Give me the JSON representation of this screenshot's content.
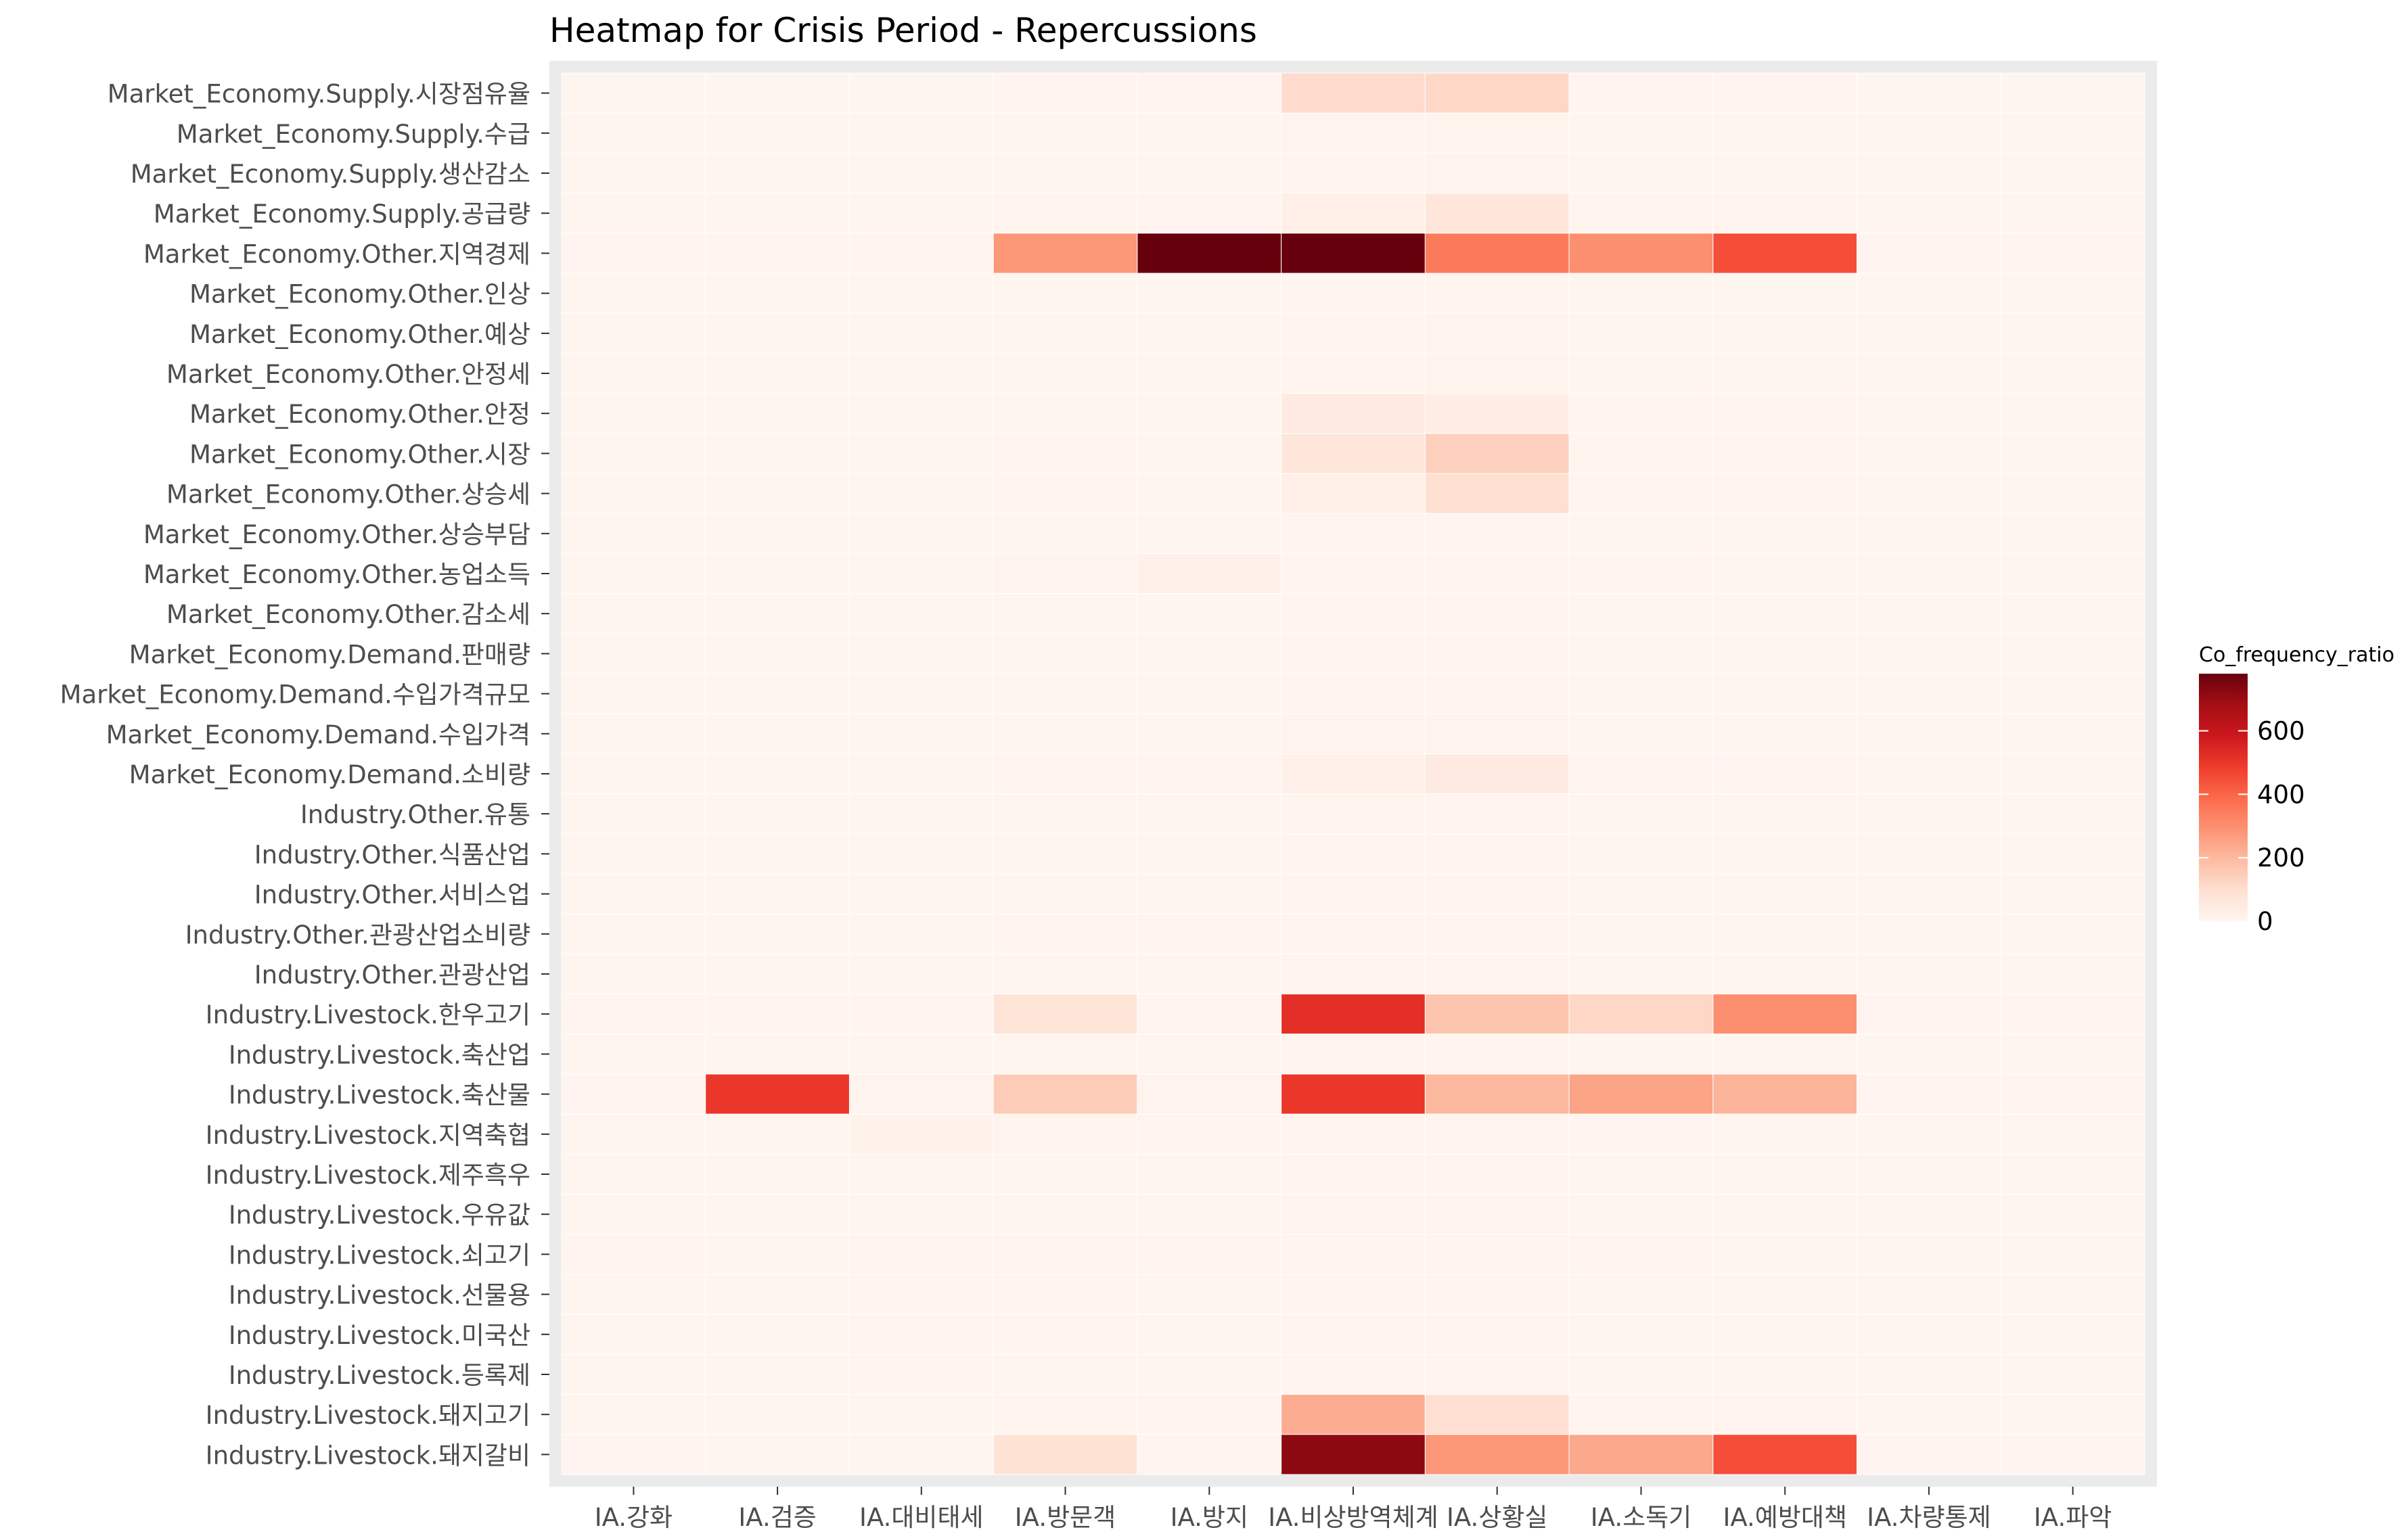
{
  "chart_data": {
    "type": "heatmap",
    "title": "Heatmap for Crisis Period - Repercussions",
    "xlabel": "",
    "ylabel": "",
    "x_categories": [
      "IA.강화",
      "IA.검증",
      "IA.대비태세",
      "IA.방문객",
      "IA.방지",
      "IA.비상방역체계",
      "IA.상황실",
      "IA.소독기",
      "IA.예방대책",
      "IA.차량통제",
      "IA.파악"
    ],
    "y_categories": [
      "Market_Economy.Supply.시장점유율",
      "Market_Economy.Supply.수급",
      "Market_Economy.Supply.생산감소",
      "Market_Economy.Supply.공급량",
      "Market_Economy.Other.지역경제",
      "Market_Economy.Other.인상",
      "Market_Economy.Other.예상",
      "Market_Economy.Other.안정세",
      "Market_Economy.Other.안정",
      "Market_Economy.Other.시장",
      "Market_Economy.Other.상승세",
      "Market_Economy.Other.상승부담",
      "Market_Economy.Other.농업소득",
      "Market_Economy.Other.감소세",
      "Market_Economy.Demand.판매량",
      "Market_Economy.Demand.수입가격규모",
      "Market_Economy.Demand.수입가격",
      "Market_Economy.Demand.소비량",
      "Industry.Other.유통",
      "Industry.Other.식품산업",
      "Industry.Other.서비스업",
      "Industry.Other.관광산업소비량",
      "Industry.Other.관광산업",
      "Industry.Livestock.한우고기",
      "Industry.Livestock.축산업",
      "Industry.Livestock.축산물",
      "Industry.Livestock.지역축협",
      "Industry.Livestock.제주흑우",
      "Industry.Livestock.우유값",
      "Industry.Livestock.쇠고기",
      "Industry.Livestock.선물용",
      "Industry.Livestock.미국산",
      "Industry.Livestock.등록제",
      "Industry.Livestock.돼지고기",
      "Industry.Livestock.돼지갈비"
    ],
    "values": [
      [
        2,
        2,
        2,
        5,
        3,
        110,
        120,
        3,
        3,
        2,
        2
      ],
      [
        2,
        2,
        2,
        2,
        2,
        8,
        10,
        2,
        2,
        2,
        2
      ],
      [
        2,
        2,
        2,
        2,
        2,
        5,
        8,
        2,
        2,
        2,
        2
      ],
      [
        2,
        2,
        2,
        5,
        3,
        30,
        70,
        5,
        5,
        2,
        2
      ],
      [
        3,
        3,
        3,
        280,
        780,
        780,
        350,
        300,
        450,
        3,
        3
      ],
      [
        2,
        2,
        2,
        2,
        2,
        5,
        5,
        2,
        2,
        2,
        2
      ],
      [
        2,
        2,
        2,
        2,
        2,
        5,
        8,
        2,
        2,
        2,
        2
      ],
      [
        2,
        2,
        2,
        2,
        2,
        5,
        8,
        2,
        2,
        2,
        2
      ],
      [
        2,
        2,
        2,
        2,
        2,
        50,
        40,
        3,
        3,
        2,
        2
      ],
      [
        2,
        2,
        2,
        5,
        2,
        70,
        140,
        5,
        5,
        2,
        2
      ],
      [
        2,
        2,
        2,
        3,
        2,
        30,
        100,
        3,
        3,
        2,
        2
      ],
      [
        2,
        2,
        2,
        2,
        2,
        5,
        5,
        2,
        2,
        2,
        2
      ],
      [
        2,
        2,
        2,
        8,
        20,
        5,
        5,
        3,
        2,
        2,
        2
      ],
      [
        2,
        2,
        2,
        2,
        2,
        5,
        5,
        2,
        2,
        2,
        2
      ],
      [
        2,
        2,
        2,
        2,
        2,
        5,
        5,
        2,
        2,
        2,
        2
      ],
      [
        2,
        2,
        2,
        2,
        2,
        5,
        5,
        2,
        2,
        2,
        2
      ],
      [
        2,
        2,
        2,
        2,
        2,
        10,
        8,
        2,
        2,
        2,
        2
      ],
      [
        2,
        2,
        2,
        5,
        3,
        20,
        50,
        3,
        3,
        2,
        2
      ],
      [
        2,
        2,
        2,
        2,
        2,
        5,
        5,
        2,
        2,
        2,
        2
      ],
      [
        2,
        2,
        2,
        2,
        2,
        5,
        5,
        2,
        2,
        2,
        2
      ],
      [
        2,
        2,
        2,
        2,
        2,
        5,
        5,
        2,
        2,
        2,
        2
      ],
      [
        2,
        2,
        2,
        3,
        5,
        5,
        5,
        2,
        2,
        2,
        2
      ],
      [
        2,
        2,
        2,
        2,
        2,
        5,
        5,
        2,
        2,
        2,
        2
      ],
      [
        5,
        3,
        3,
        80,
        5,
        520,
        170,
        120,
        300,
        3,
        3
      ],
      [
        2,
        2,
        2,
        2,
        2,
        5,
        5,
        2,
        2,
        2,
        2
      ],
      [
        3,
        500,
        10,
        150,
        10,
        500,
        200,
        250,
        210,
        3,
        3
      ],
      [
        2,
        2,
        15,
        10,
        5,
        5,
        5,
        3,
        2,
        2,
        2
      ],
      [
        2,
        2,
        2,
        2,
        2,
        5,
        5,
        2,
        2,
        2,
        2
      ],
      [
        2,
        2,
        2,
        2,
        2,
        5,
        5,
        2,
        2,
        2,
        2
      ],
      [
        5,
        2,
        5,
        3,
        3,
        5,
        5,
        3,
        2,
        2,
        2
      ],
      [
        2,
        2,
        5,
        3,
        2,
        5,
        5,
        2,
        2,
        2,
        2
      ],
      [
        2,
        2,
        5,
        3,
        2,
        5,
        5,
        2,
        2,
        2,
        2
      ],
      [
        2,
        2,
        3,
        2,
        2,
        5,
        5,
        2,
        2,
        2,
        2
      ],
      [
        2,
        2,
        2,
        5,
        3,
        230,
        100,
        5,
        5,
        2,
        2
      ],
      [
        3,
        2,
        2,
        90,
        5,
        720,
        280,
        240,
        450,
        3,
        3
      ]
    ],
    "color_scale": {
      "name": "Co_frequency_ratio",
      "min": 0,
      "max": 780,
      "ticks": [
        0,
        200,
        400,
        600
      ],
      "colors": [
        "#fff5f0",
        "#fee0d2",
        "#fcbba1",
        "#fc9272",
        "#fb6a4a",
        "#ef3b2c",
        "#cb181d",
        "#a50f15",
        "#67000d"
      ]
    },
    "panel_background": "#ebebeb",
    "grid": true,
    "legend_position": "right"
  }
}
